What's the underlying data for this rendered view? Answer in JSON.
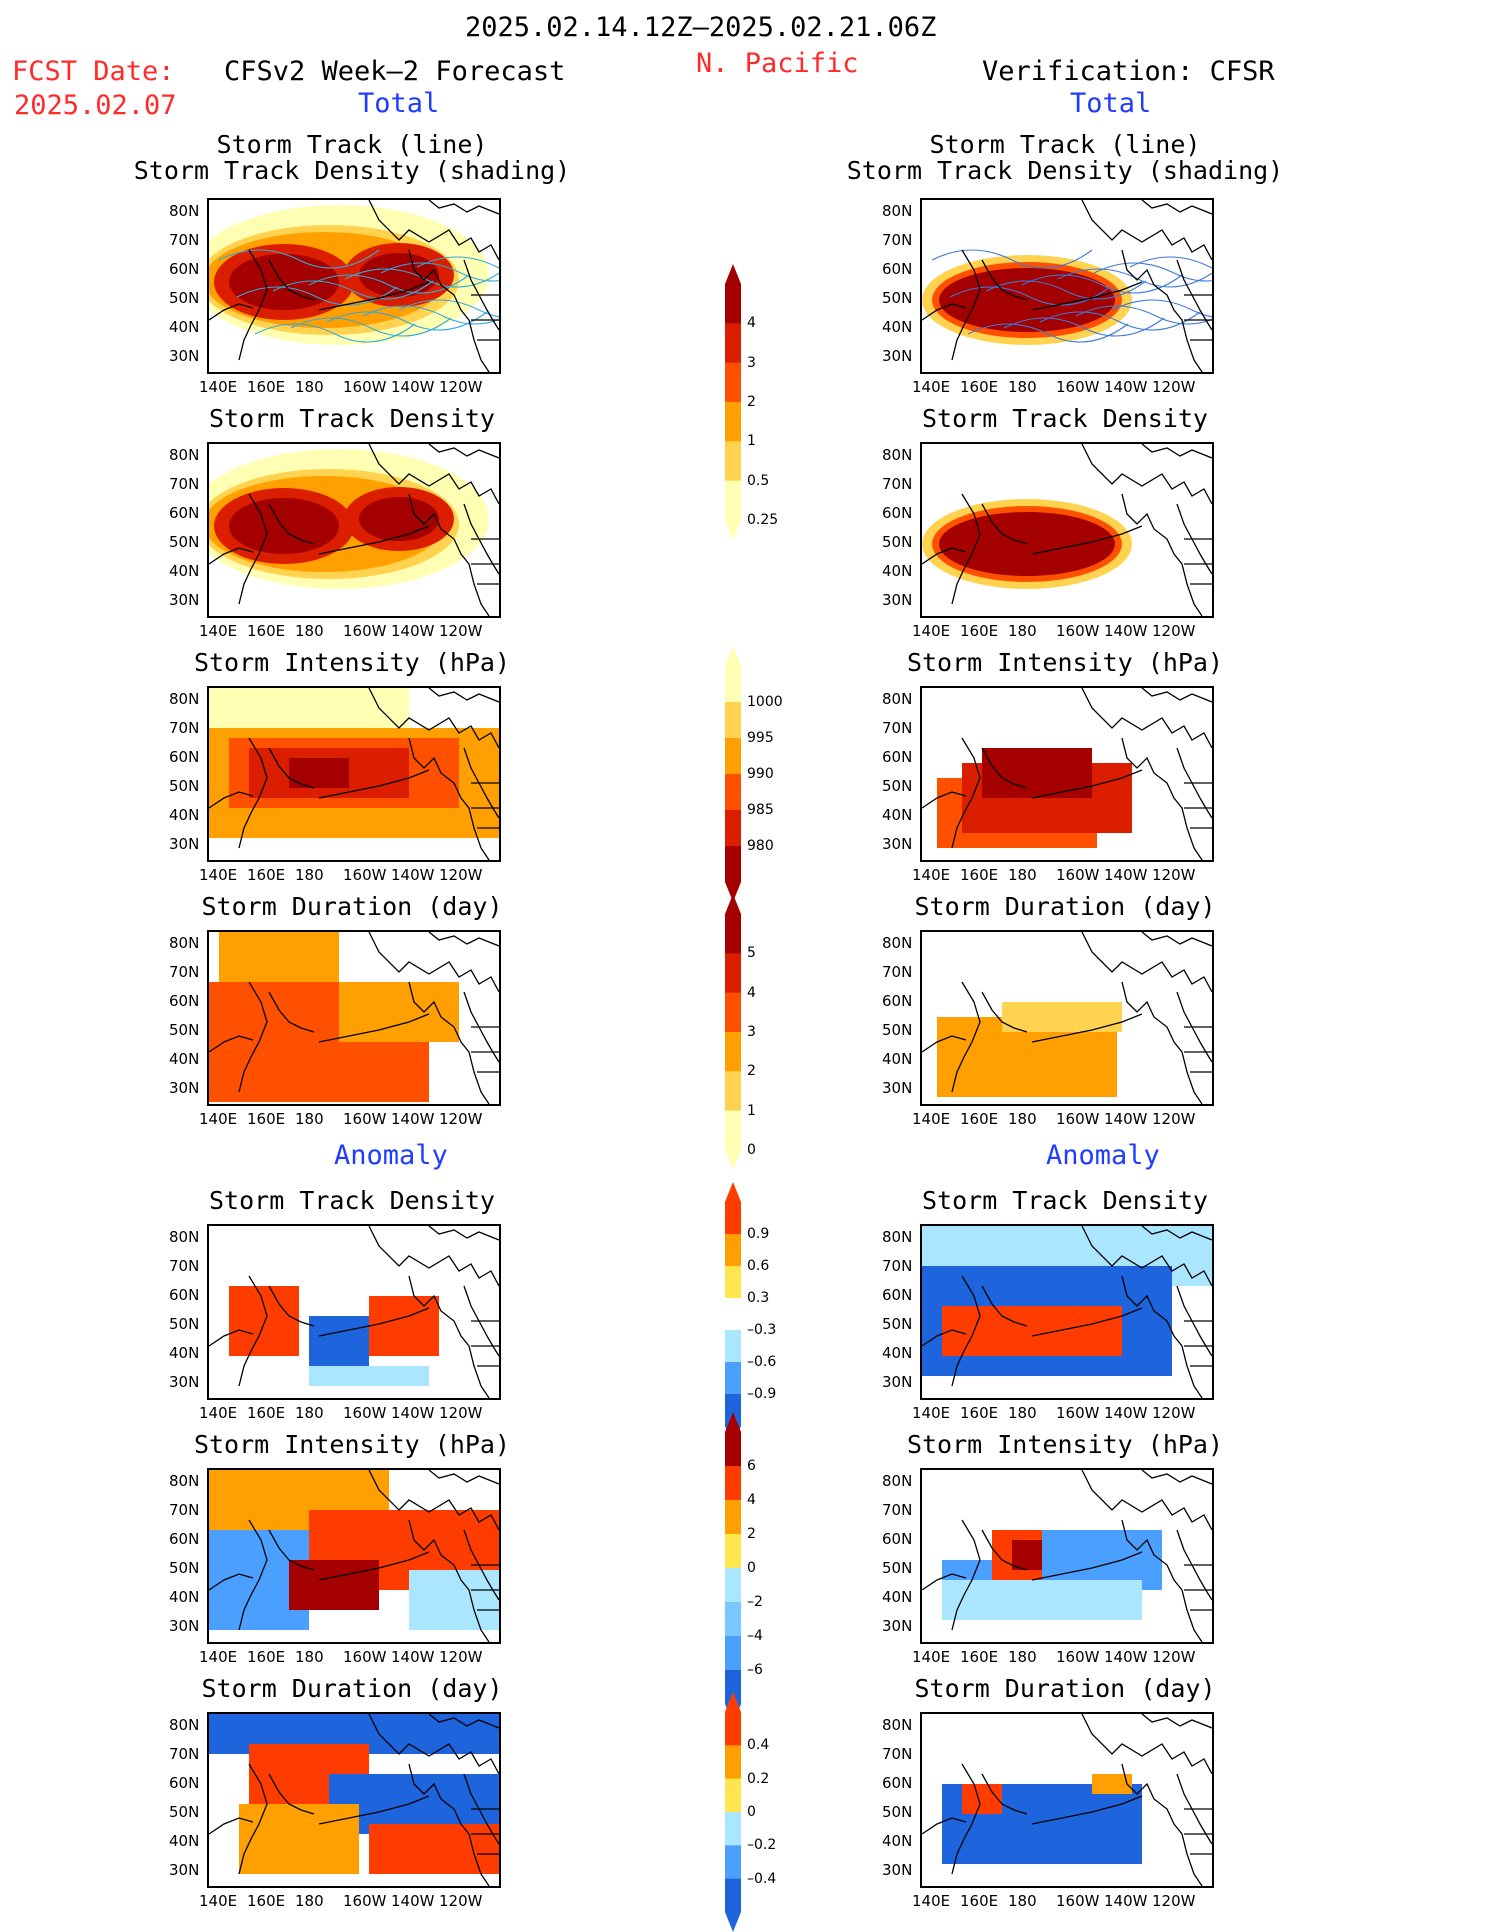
{
  "header": {
    "date_range": "2025.02.14.12Z–2025.02.21.06Z",
    "fcst_label": "FCST Date:",
    "fcst_date": "2025.02.07",
    "region": "N. Pacific",
    "left_model": "CFSv2 Week–2 Forecast",
    "right_model": "Verification: CFSR",
    "total_label": "Total",
    "anomaly_label": "Anomaly"
  },
  "axes": {
    "lat_labels": [
      "80N",
      "70N",
      "60N",
      "50N",
      "40N",
      "30N"
    ],
    "lon_labels": [
      "140E",
      "160E",
      "180",
      "160W",
      "140W",
      "120W"
    ]
  },
  "panels": {
    "total": [
      {
        "title1": "Storm Track (line)",
        "title2": "Storm Track Density (shading)"
      },
      {
        "title1": "Storm Track Density"
      },
      {
        "title1": "Storm Intensity (hPa)"
      },
      {
        "title1": "Storm Duration (day)"
      }
    ],
    "anomaly": [
      {
        "title1": "Storm Track Density"
      },
      {
        "title1": "Storm Intensity (hPa)"
      },
      {
        "title1": "Storm Duration (day)"
      }
    ]
  },
  "colorbars": {
    "density": {
      "labels": [
        "4",
        "3",
        "2",
        "1",
        "0.5",
        "0.25"
      ],
      "colors": [
        "#a50000",
        "#dc1e00",
        "#ff5000",
        "#ffa000",
        "#ffd250",
        "#ffffb4"
      ]
    },
    "intensity": {
      "labels": [
        "1000",
        "995",
        "990",
        "985",
        "980"
      ],
      "colors": [
        "#ffffb4",
        "#ffd250",
        "#ffa000",
        "#ff5000",
        "#dc1e00",
        "#a50000"
      ]
    },
    "duration": {
      "labels": [
        "5",
        "4",
        "3",
        "2",
        "1",
        "0"
      ],
      "colors": [
        "#a50000",
        "#dc1e00",
        "#ff5000",
        "#ffa000",
        "#ffd250",
        "#ffffb4"
      ]
    },
    "density_anom": {
      "labels": [
        "0.9",
        "0.6",
        "0.3",
        "–0.3",
        "–0.6",
        "–0.9"
      ],
      "colors": [
        "#ff3c00",
        "#ffa000",
        "#ffe650",
        "#ffffff",
        "#aae6ff",
        "#4ba0ff",
        "#1e64dc"
      ]
    },
    "intensity_anom": {
      "labels": [
        "6",
        "4",
        "2",
        "0",
        "–2",
        "–4",
        "–6"
      ],
      "colors": [
        "#a50000",
        "#ff3c00",
        "#ffa000",
        "#ffe650",
        "#aae6ff",
        "#78c8ff",
        "#4ba0ff",
        "#1e64dc"
      ]
    },
    "duration_anom": {
      "labels": [
        "0.4",
        "0.2",
        "0",
        "–0.2",
        "–0.4"
      ],
      "colors": [
        "#ff3c00",
        "#ffa000",
        "#ffe650",
        "#aae6ff",
        "#4ba0ff",
        "#1e64dc"
      ]
    }
  }
}
